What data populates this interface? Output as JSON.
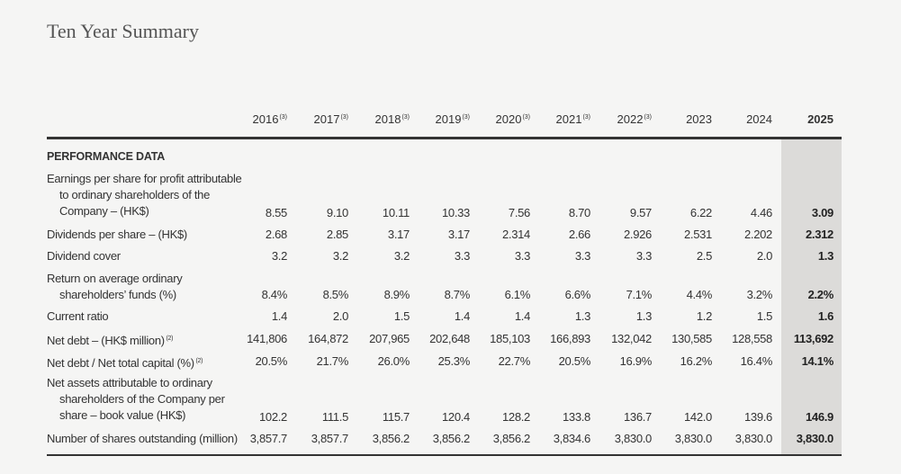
{
  "title": "Ten Year Summary",
  "years": [
    {
      "label": "2016",
      "note": "(3)"
    },
    {
      "label": "2017",
      "note": "(3)"
    },
    {
      "label": "2018",
      "note": "(3)"
    },
    {
      "label": "2019",
      "note": "(3)"
    },
    {
      "label": "2020",
      "note": "(3)"
    },
    {
      "label": "2021",
      "note": "(3)"
    },
    {
      "label": "2022",
      "note": "(3)"
    },
    {
      "label": "2023",
      "note": ""
    },
    {
      "label": "2024",
      "note": ""
    },
    {
      "label": "2025",
      "note": ""
    }
  ],
  "section": "PERFORMANCE DATA",
  "rows": [
    {
      "label_lines": [
        "Earnings per share for profit attributable",
        "to ordinary shareholders of the",
        "Company – (HK$)"
      ],
      "note": "",
      "values": [
        "8.55",
        "9.10",
        "10.11",
        "10.33",
        "7.56",
        "8.70",
        "9.57",
        "6.22",
        "4.46",
        "3.09"
      ]
    },
    {
      "label_lines": [
        "Dividends per share – (HK$)"
      ],
      "note": "",
      "values": [
        "2.68",
        "2.85",
        "3.17",
        "3.17",
        "2.314",
        "2.66",
        "2.926",
        "2.531",
        "2.202",
        "2.312"
      ]
    },
    {
      "label_lines": [
        "Dividend cover"
      ],
      "note": "",
      "values": [
        "3.2",
        "3.2",
        "3.2",
        "3.3",
        "3.3",
        "3.3",
        "3.3",
        "2.5",
        "2.0",
        "1.3"
      ]
    },
    {
      "label_lines": [
        "Return on average ordinary",
        "shareholders’ funds (%)"
      ],
      "note": "",
      "values": [
        "8.4%",
        "8.5%",
        "8.9%",
        "8.7%",
        "6.1%",
        "6.6%",
        "7.1%",
        "4.4%",
        "3.2%",
        "2.2%"
      ]
    },
    {
      "label_lines": [
        "Current ratio"
      ],
      "note": "",
      "values": [
        "1.4",
        "2.0",
        "1.5",
        "1.4",
        "1.4",
        "1.3",
        "1.3",
        "1.2",
        "1.5",
        "1.6"
      ]
    },
    {
      "label_lines": [
        "Net debt – (HK$ million)"
      ],
      "note": "(2)",
      "values": [
        "141,806",
        "164,872",
        "207,965",
        "202,648",
        "185,103",
        "166,893",
        "132,042",
        "130,585",
        "128,558",
        "113,692"
      ]
    },
    {
      "label_lines": [
        "Net debt / Net total capital (%)"
      ],
      "note": "(2)",
      "values": [
        "20.5%",
        "21.7%",
        "26.0%",
        "25.3%",
        "22.7%",
        "20.5%",
        "16.9%",
        "16.2%",
        "16.4%",
        "14.1%"
      ]
    },
    {
      "label_lines": [
        "Net assets attributable to ordinary",
        "shareholders of the Company per",
        "share – book value (HK$)"
      ],
      "note": "",
      "values": [
        "102.2",
        "111.5",
        "115.7",
        "120.4",
        "128.2",
        "133.8",
        "136.7",
        "142.0",
        "139.6",
        "146.9"
      ]
    },
    {
      "label_lines": [
        "Number of shares outstanding (million)"
      ],
      "note": "",
      "values": [
        "3,857.7",
        "3,857.7",
        "3,856.2",
        "3,856.2",
        "3,856.2",
        "3,834.6",
        "3,830.0",
        "3,830.0",
        "3,830.0",
        "3,830.0"
      ]
    }
  ]
}
